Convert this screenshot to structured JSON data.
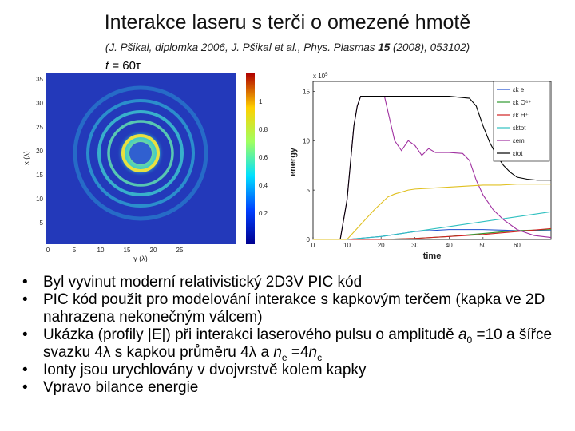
{
  "slide": {
    "title": "Interakce laseru s terči o omezené hmotě",
    "reference_pre": "(J. Pšikal, diplomka 2006, J. Pšikal et al., Phys. Plasmas ",
    "reference_vol": "15",
    "reference_post": " (2008), 053102)",
    "time_label_var": "t",
    "time_label_value": " = 60τ"
  },
  "left_figure": {
    "ylabel": "x (λ)",
    "xlabel": "y (λ)",
    "y_ticks": [
      "35",
      "30",
      "25",
      "20",
      "15",
      "10",
      "5"
    ],
    "x_ticks": [
      "0",
      "5",
      "10",
      "15",
      "20",
      "25"
    ],
    "colorbar_ticks": [
      "1",
      "0.8",
      "0.6",
      "0.4",
      "0.2"
    ],
    "colors": {
      "background": "#1e2fb0",
      "ring": "#30c8d8",
      "core": "#e8e040"
    }
  },
  "bullets": {
    "b1": "Byl vyvinut moderní relativistický 2D3V PIC kód",
    "b2": "PIC kód použit pro modelování interakce s kapkovým terčem (kapka ve 2D nahrazena nekonečným válcem)",
    "b3a": "Ukázka (profily |E|) při interakci laserového pulsu o amplitudě ",
    "b3_a0_var": "a",
    "b3_a0_sub": "0",
    "b3b": " =10 a šířce svazku 4λ s kapkou průměru 4λ a ",
    "b3_ne_var": "n",
    "b3_ne_sub": "e",
    "b3c": " =4",
    "b3_nc_var": "n",
    "b3_nc_sub": "c",
    "b4": "Ionty jsou urychlovány v dvojvrstvě kolem kapky",
    "b5": "Vpravo bilance energie"
  },
  "chart_data": {
    "type": "line",
    "xlabel": "time",
    "ylabel": "energy",
    "y_multiplier": "x 10",
    "y_multiplier_exp": "5",
    "xlim": [
      0,
      70
    ],
    "ylim": [
      0,
      16
    ],
    "x_ticks": [
      0,
      10,
      20,
      30,
      40,
      50,
      60
    ],
    "y_ticks": [
      0,
      5,
      10,
      15
    ],
    "legend": "right",
    "series": [
      {
        "name": "εk e⁻",
        "color": "#1f4fd0",
        "x": [
          0,
          10,
          20,
          30,
          40,
          50,
          60,
          70
        ],
        "y": [
          0,
          0,
          0.3,
          0.8,
          1.0,
          1.0,
          0.9,
          0.9
        ]
      },
      {
        "name": "εk O⁶⁺",
        "color": "#2e9a2e",
        "x": [
          0,
          10,
          20,
          30,
          40,
          50,
          60,
          70
        ],
        "y": [
          0,
          0,
          0,
          0.1,
          0.3,
          0.6,
          0.9,
          1.0
        ]
      },
      {
        "name": "εk H⁺",
        "color": "#d02020",
        "x": [
          0,
          10,
          20,
          30,
          40,
          50,
          60,
          70
        ],
        "y": [
          0,
          0,
          0,
          0.1,
          0.3,
          0.5,
          0.8,
          1.1
        ]
      },
      {
        "name": "εktot",
        "color": "#30c0c0",
        "x": [
          0,
          10,
          20,
          30,
          40,
          50,
          60,
          70
        ],
        "y": [
          0,
          0,
          0.3,
          0.8,
          1.3,
          1.8,
          2.3,
          2.8
        ]
      },
      {
        "name": "εem",
        "color": "#a030a0",
        "x": [
          0,
          8,
          10,
          12,
          13,
          14,
          16,
          19,
          21,
          22,
          23,
          24,
          26,
          28,
          30,
          32,
          34,
          36,
          40,
          44,
          46,
          48,
          50,
          53,
          56,
          60,
          65,
          70
        ],
        "y": [
          0,
          0,
          4,
          11.5,
          13.5,
          14.5,
          14.5,
          14.5,
          14.5,
          13,
          11.5,
          10,
          9,
          10,
          9.5,
          8.5,
          9.2,
          8.8,
          8.8,
          8.7,
          8,
          6,
          4.5,
          3,
          2,
          1,
          0.4,
          0.2
        ]
      },
      {
        "name": "εtot",
        "color": "#000000",
        "x": [
          0,
          8,
          10,
          12,
          13,
          14,
          30,
          40,
          46,
          48,
          50,
          52,
          54,
          56,
          58,
          60,
          63,
          66,
          68,
          70
        ],
        "y": [
          0,
          0,
          4,
          11.5,
          13.5,
          14.5,
          14.5,
          14.5,
          14.3,
          13.5,
          11.5,
          9.8,
          8.5,
          7.5,
          6.8,
          6.3,
          6.1,
          6.0,
          6.0,
          6.0
        ]
      },
      {
        "name": "",
        "color": "#e0c020",
        "x": [
          0,
          10,
          18,
          22,
          24,
          26,
          28,
          30,
          35,
          40,
          45,
          50,
          55,
          60,
          65,
          70
        ],
        "y": [
          0,
          0,
          3,
          4.3,
          4.6,
          4.8,
          5.0,
          5.1,
          5.2,
          5.3,
          5.4,
          5.5,
          5.5,
          5.6,
          5.6,
          5.6
        ]
      }
    ],
    "legend_entries": [
      "εk e⁻",
      "εk O⁶⁺",
      "εk H⁺",
      "εktot",
      "εem",
      "εtot"
    ]
  }
}
